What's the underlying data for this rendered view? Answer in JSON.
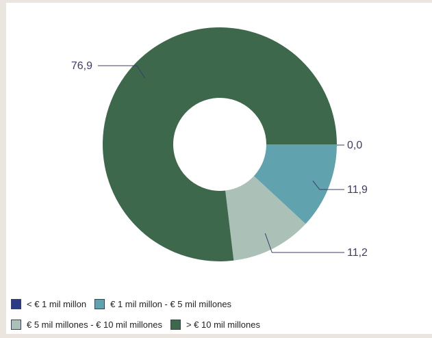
{
  "chart_data": {
    "type": "pie",
    "donut": true,
    "categories": [
      "< € 1 mil millon",
      "€ 1 mil millon - € 5 mil millones",
      "€ 5 mil millones - € 10 mil millones",
      "> € 10 mil millones"
    ],
    "values": [
      0.0,
      11.9,
      11.2,
      76.9
    ],
    "value_labels": [
      "0,0",
      "11,9",
      "11,2",
      "76,9"
    ],
    "colors": [
      "#2b3a87",
      "#60a3ae",
      "#abc1b7",
      "#3d684c"
    ],
    "legend_position": "bottom"
  }
}
